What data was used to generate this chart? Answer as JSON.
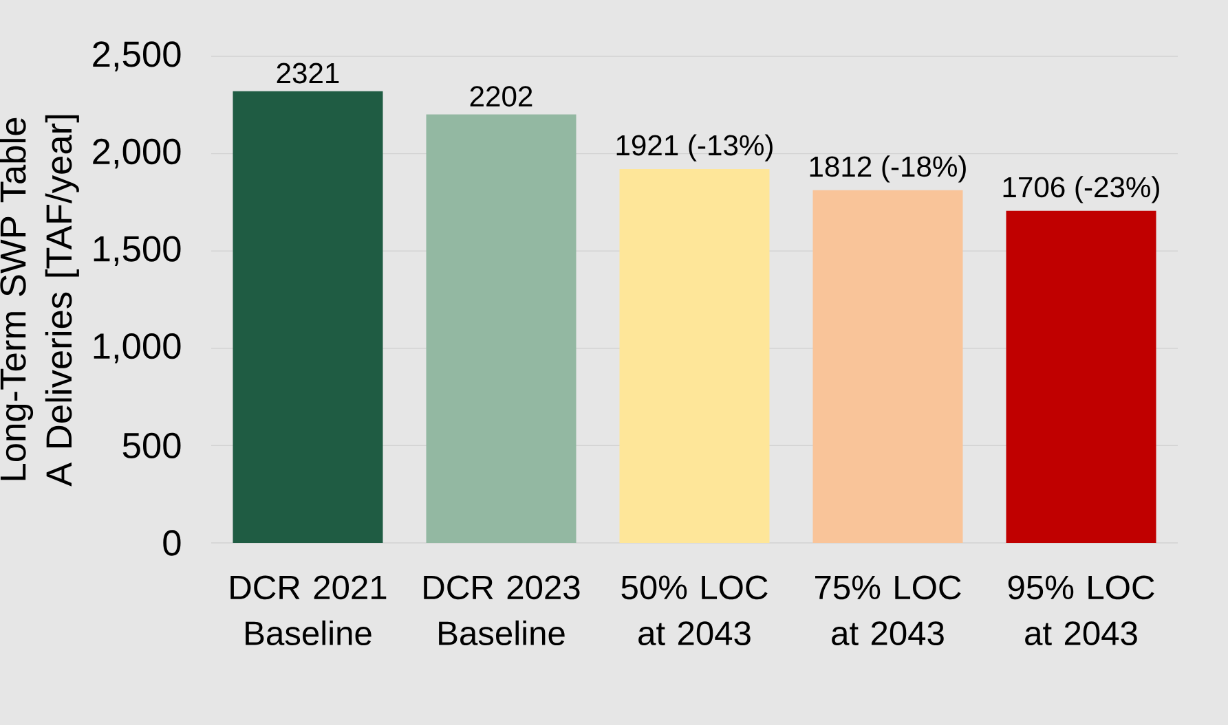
{
  "chart_data": {
    "type": "bar",
    "ylabel": "Long-Term SWP Table A Deliveries [TAF/year]",
    "categories": [
      "DCR 2021 Baseline",
      "DCR 2023 Baseline",
      "50% LOC at 2043",
      "75% LOC at 2043",
      "95% LOC at 2043"
    ],
    "values": [
      2321,
      2202,
      1921,
      1812,
      1706
    ],
    "colors": [
      "#1f5c43",
      "#93b8a2",
      "#fee699",
      "#f9c499",
      "#c00000"
    ],
    "value_labels": [
      "2321",
      "2202",
      "1921 (-13%)",
      "1812 (-18%)",
      "1706 (-23%)"
    ],
    "ylim": [
      0,
      2500
    ],
    "yticks": [
      0,
      500,
      {
        "value": 1000,
        "label": "1,000"
      },
      {
        "value": 1500,
        "label": "1,500"
      },
      {
        "value": 2000,
        "label": "2,000"
      },
      {
        "value": 2500,
        "label": "2,500"
      }
    ],
    "grid": "y"
  }
}
